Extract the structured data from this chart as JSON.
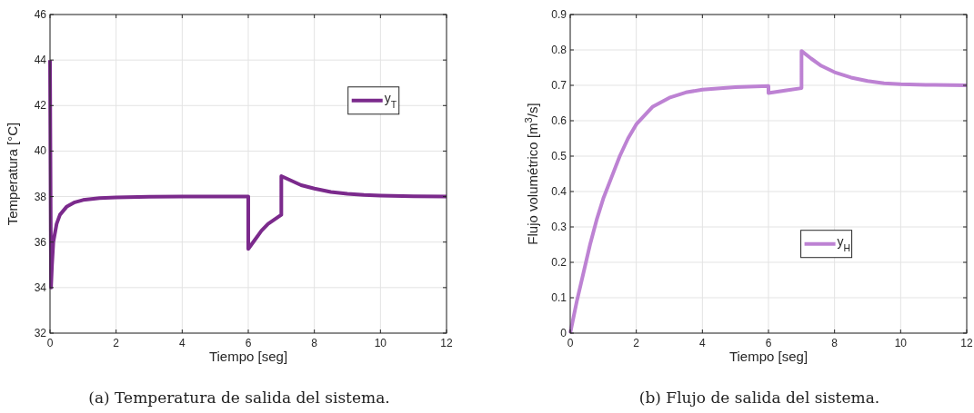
{
  "chart_data": [
    {
      "type": "line",
      "xlabel": "Tiempo [seg]",
      "ylabel": "Temperatura [°C]",
      "annotations": [
        "(a) Temperatura de salida del sistema."
      ],
      "xlim": [
        0,
        12
      ],
      "ylim": [
        32,
        46
      ],
      "xticks": [
        0,
        2,
        4,
        6,
        8,
        10,
        12
      ],
      "yticks": [
        32,
        34,
        36,
        38,
        40,
        42,
        44,
        46
      ],
      "grid": true,
      "legend": "top right",
      "line_style": "solid",
      "marker": "none",
      "series": [
        {
          "name": "y$_{T}$",
          "color": "#7b2a8c",
          "x": [
            0,
            0.03,
            0.06,
            0.1,
            0.2,
            0.3,
            0.5,
            0.75,
            1,
            1.5,
            2,
            3,
            4,
            5,
            6,
            6,
            6.2,
            6.4,
            6.6,
            6.8,
            7,
            7,
            7.3,
            7.6,
            8,
            8.5,
            9,
            9.5,
            10,
            11,
            12
          ],
          "values": [
            44,
            34,
            35,
            36,
            36.8,
            37.2,
            37.55,
            37.75,
            37.85,
            37.93,
            37.96,
            37.99,
            38,
            38,
            38,
            35.7,
            36.1,
            36.5,
            36.8,
            37,
            37.2,
            38.9,
            38.7,
            38.5,
            38.35,
            38.2,
            38.12,
            38.07,
            38.04,
            38.01,
            38
          ]
        }
      ]
    },
    {
      "type": "line",
      "xlabel": "Tiempo [seg]",
      "ylabel": "Flujo volumétrico [m$^{3}$/s]",
      "annotations": [
        "(b) Flujo de salida del sistema."
      ],
      "xlim": [
        0,
        12
      ],
      "ylim": [
        0,
        0.9
      ],
      "xticks": [
        0,
        2,
        4,
        6,
        8,
        10,
        12
      ],
      "yticks": [
        0,
        0.1,
        0.2,
        0.3,
        0.4,
        0.5,
        0.6,
        0.7,
        0.8,
        0.9
      ],
      "grid": true,
      "legend": "right",
      "line_style": "solid",
      "marker": "none",
      "series": [
        {
          "name": "y$_{H}$",
          "color": "#bd82d3",
          "x": [
            0,
            0.2,
            0.4,
            0.6,
            0.8,
            1,
            1.25,
            1.5,
            1.75,
            2,
            2.5,
            3,
            3.5,
            4,
            5,
            6,
            6,
            6.5,
            7,
            7,
            7.3,
            7.6,
            8,
            8.5,
            9,
            9.5,
            10,
            11,
            12
          ],
          "values": [
            0,
            0.09,
            0.17,
            0.25,
            0.32,
            0.38,
            0.44,
            0.5,
            0.55,
            0.59,
            0.64,
            0.665,
            0.68,
            0.688,
            0.695,
            0.698,
            0.678,
            0.685,
            0.692,
            0.797,
            0.775,
            0.755,
            0.737,
            0.722,
            0.712,
            0.706,
            0.703,
            0.701,
            0.7
          ]
        }
      ]
    }
  ]
}
